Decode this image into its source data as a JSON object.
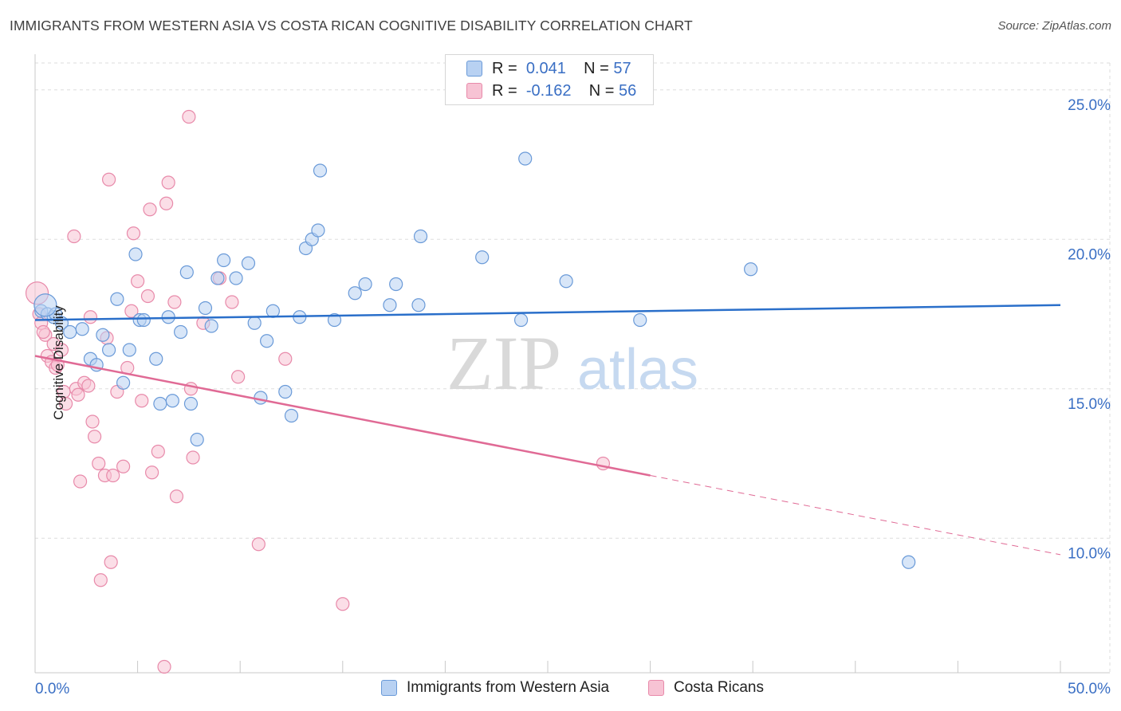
{
  "title": "IMMIGRANTS FROM WESTERN ASIA VS COSTA RICAN COGNITIVE DISABILITY CORRELATION CHART",
  "source": "Source: ZipAtlas.com",
  "watermark": {
    "zip": "ZIP",
    "atlas": "atlas"
  },
  "legend": {
    "rows": [
      {
        "r_label": "R =",
        "r_value": "0.041",
        "n_label": "N =",
        "n_value": "57"
      },
      {
        "r_label": "R =",
        "r_value": "-0.162",
        "n_label": "N =",
        "n_value": "56"
      }
    ]
  },
  "bottom_legend": {
    "series1": "Immigrants from Western Asia",
    "series2": "Costa Ricans"
  },
  "colors": {
    "blue_fill": "#b8d1f2",
    "blue_stroke": "#6a9ad8",
    "blue_line": "#2a6fca",
    "pink_fill": "#f7c3d4",
    "pink_stroke": "#e88aaa",
    "pink_line": "#e06a95",
    "tick_text": "#3a6fc4",
    "grid": "#dddddd"
  },
  "chart_data": {
    "type": "scatter",
    "title": "IMMIGRANTS FROM WESTERN ASIA VS COSTA RICAN COGNITIVE DISABILITY CORRELATION CHART",
    "xlabel": "",
    "ylabel": "Cognitive Disability",
    "xlim": [
      0,
      50
    ],
    "ylim": [
      5.5,
      25.9
    ],
    "x_tick_labels": [
      {
        "value": 0,
        "label": "0.0%"
      },
      {
        "value": 50,
        "label": "50.0%"
      }
    ],
    "y_ticks": [
      {
        "value": 10,
        "label": "10.0%"
      },
      {
        "value": 15,
        "label": "15.0%"
      },
      {
        "value": 20,
        "label": "20.0%"
      },
      {
        "value": 25,
        "label": "25.0%"
      }
    ],
    "grid": true,
    "legend_position": "top-center",
    "series": [
      {
        "name": "Immigrants from Western Asia",
        "color": "#6a9ad8",
        "points": [
          [
            0.3,
            17.6
          ],
          [
            0.6,
            17.5
          ],
          [
            0.9,
            17.4
          ],
          [
            1.0,
            17.5
          ],
          [
            1.3,
            17.2
          ],
          [
            1.7,
            16.9
          ],
          [
            2.3,
            17.0
          ],
          [
            2.7,
            16.0
          ],
          [
            3.0,
            15.8
          ],
          [
            3.3,
            16.8
          ],
          [
            3.6,
            16.3
          ],
          [
            4.0,
            18.0
          ],
          [
            4.3,
            15.2
          ],
          [
            4.6,
            16.3
          ],
          [
            4.9,
            19.5
          ],
          [
            5.1,
            17.3
          ],
          [
            5.3,
            17.3
          ],
          [
            5.9,
            16.0
          ],
          [
            6.1,
            14.5
          ],
          [
            6.5,
            17.4
          ],
          [
            6.7,
            14.6
          ],
          [
            7.1,
            16.9
          ],
          [
            7.4,
            18.9
          ],
          [
            7.6,
            14.5
          ],
          [
            7.9,
            13.3
          ],
          [
            8.3,
            17.7
          ],
          [
            8.6,
            17.1
          ],
          [
            8.9,
            18.7
          ],
          [
            9.2,
            19.3
          ],
          [
            9.8,
            18.7
          ],
          [
            10.4,
            19.2
          ],
          [
            10.7,
            17.2
          ],
          [
            11.0,
            14.7
          ],
          [
            11.3,
            16.6
          ],
          [
            11.6,
            17.6
          ],
          [
            12.2,
            14.9
          ],
          [
            12.5,
            14.1
          ],
          [
            12.9,
            17.4
          ],
          [
            13.2,
            19.7
          ],
          [
            13.5,
            20.0
          ],
          [
            13.8,
            20.3
          ],
          [
            13.9,
            22.3
          ],
          [
            14.6,
            17.3
          ],
          [
            15.6,
            18.2
          ],
          [
            16.1,
            18.5
          ],
          [
            17.3,
            17.8
          ],
          [
            17.6,
            18.5
          ],
          [
            18.7,
            17.8
          ],
          [
            18.8,
            20.1
          ],
          [
            21.8,
            19.4
          ],
          [
            23.7,
            17.3
          ],
          [
            23.9,
            22.7
          ],
          [
            25.9,
            18.6
          ],
          [
            29.5,
            17.3
          ],
          [
            34.9,
            19.0
          ],
          [
            42.6,
            9.2
          ],
          [
            0.5,
            17.8
          ]
        ]
      },
      {
        "name": "Costa Ricans",
        "color": "#e88aaa",
        "points": [
          [
            0.1,
            18.2
          ],
          [
            0.2,
            17.5
          ],
          [
            0.3,
            17.2
          ],
          [
            0.5,
            16.8
          ],
          [
            0.6,
            16.1
          ],
          [
            0.8,
            15.9
          ],
          [
            0.9,
            16.5
          ],
          [
            1.0,
            15.7
          ],
          [
            1.1,
            15.8
          ],
          [
            1.3,
            16.3
          ],
          [
            1.4,
            14.9
          ],
          [
            1.5,
            14.5
          ],
          [
            1.9,
            20.1
          ],
          [
            2.0,
            15.0
          ],
          [
            2.1,
            14.8
          ],
          [
            2.2,
            11.9
          ],
          [
            2.4,
            15.2
          ],
          [
            2.6,
            15.1
          ],
          [
            2.7,
            17.4
          ],
          [
            2.8,
            13.9
          ],
          [
            2.9,
            13.4
          ],
          [
            3.1,
            12.5
          ],
          [
            3.2,
            8.6
          ],
          [
            3.4,
            12.1
          ],
          [
            3.5,
            16.7
          ],
          [
            3.6,
            22.0
          ],
          [
            3.7,
            9.2
          ],
          [
            3.8,
            12.1
          ],
          [
            4.0,
            14.9
          ],
          [
            4.3,
            12.4
          ],
          [
            4.5,
            15.7
          ],
          [
            4.7,
            17.6
          ],
          [
            4.8,
            20.2
          ],
          [
            5.0,
            18.6
          ],
          [
            5.2,
            14.6
          ],
          [
            5.5,
            18.1
          ],
          [
            5.6,
            21.0
          ],
          [
            5.7,
            12.2
          ],
          [
            6.0,
            12.9
          ],
          [
            6.3,
            5.7
          ],
          [
            6.4,
            21.2
          ],
          [
            6.5,
            21.9
          ],
          [
            6.8,
            17.9
          ],
          [
            6.9,
            11.4
          ],
          [
            7.5,
            24.1
          ],
          [
            7.6,
            15.0
          ],
          [
            7.7,
            12.7
          ],
          [
            8.2,
            17.2
          ],
          [
            9.0,
            18.7
          ],
          [
            9.6,
            17.9
          ],
          [
            9.9,
            15.4
          ],
          [
            10.9,
            9.8
          ],
          [
            12.2,
            16.0
          ],
          [
            15.0,
            7.8
          ],
          [
            27.7,
            12.5
          ],
          [
            0.4,
            16.9
          ]
        ]
      }
    ],
    "trendlines": [
      {
        "series": "Immigrants from Western Asia",
        "x": [
          0,
          50
        ],
        "y": [
          17.3,
          17.8
        ],
        "style": "solid"
      },
      {
        "series": "Costa Ricans",
        "x": [
          0,
          30
        ],
        "y": [
          16.1,
          12.1
        ],
        "style": "solid"
      },
      {
        "series": "Costa Ricans",
        "x": [
          30,
          50
        ],
        "y": [
          12.1,
          9.45
        ],
        "style": "dashed"
      }
    ]
  }
}
